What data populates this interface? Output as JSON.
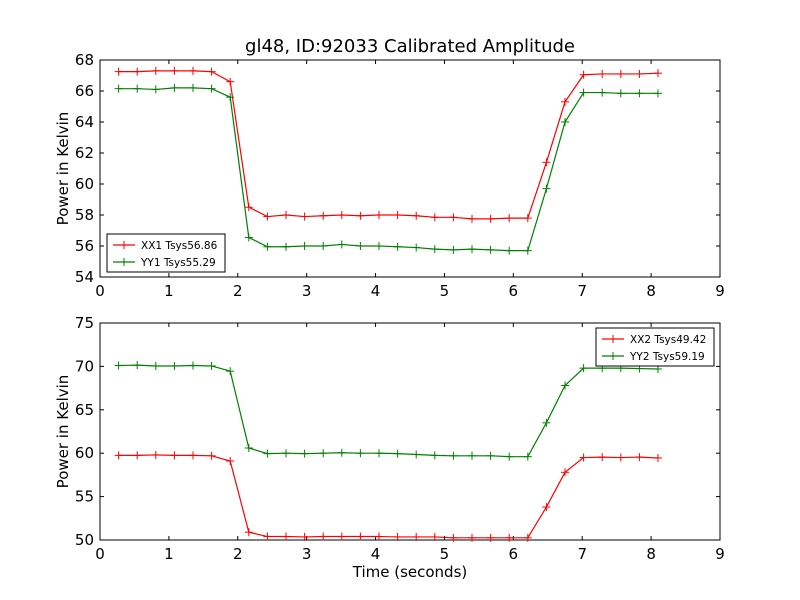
{
  "title": "gl48, ID:92033 Calibrated Amplitude",
  "chart_data": [
    {
      "type": "line",
      "xlabel": "",
      "ylabel": "Power in Kelvin",
      "xlim": [
        0,
        9
      ],
      "ylim": [
        54,
        68
      ],
      "xticks": [
        0,
        1,
        2,
        3,
        4,
        5,
        6,
        7,
        8,
        9
      ],
      "yticks": [
        54,
        56,
        58,
        60,
        62,
        64,
        66,
        68
      ],
      "grid": false,
      "legend_position": "lower-left",
      "x": [
        0.27,
        0.54,
        0.81,
        1.08,
        1.35,
        1.62,
        1.89,
        2.16,
        2.43,
        2.7,
        2.97,
        3.24,
        3.51,
        3.78,
        4.05,
        4.32,
        4.59,
        4.86,
        5.13,
        5.4,
        5.67,
        5.94,
        6.21,
        6.48,
        6.75,
        7.02,
        7.29,
        7.56,
        7.83,
        8.1
      ],
      "series": [
        {
          "name": "XX1 Tsys56.86",
          "color": "#ff0000",
          "values": [
            67.25,
            67.25,
            67.3,
            67.3,
            67.3,
            67.25,
            66.6,
            58.5,
            57.9,
            58.0,
            57.9,
            57.95,
            58.0,
            57.95,
            58.0,
            58.0,
            57.95,
            57.85,
            57.85,
            57.75,
            57.75,
            57.8,
            57.8,
            61.4,
            65.3,
            67.05,
            67.1,
            67.1,
            67.1,
            67.15
          ]
        },
        {
          "name": "YY1 Tsys55.29",
          "color": "#008000",
          "values": [
            66.15,
            66.15,
            66.1,
            66.2,
            66.2,
            66.15,
            65.6,
            56.55,
            55.95,
            55.95,
            56.0,
            56.0,
            56.1,
            56.0,
            56.0,
            55.95,
            55.9,
            55.8,
            55.75,
            55.8,
            55.75,
            55.7,
            55.7,
            59.7,
            64.0,
            65.9,
            65.9,
            65.85,
            65.85,
            65.85
          ]
        }
      ]
    },
    {
      "type": "line",
      "xlabel": "Time (seconds)",
      "ylabel": "Power in Kelvin",
      "xlim": [
        0,
        9
      ],
      "ylim": [
        50,
        75
      ],
      "xticks": [
        0,
        1,
        2,
        3,
        4,
        5,
        6,
        7,
        8,
        9
      ],
      "yticks": [
        50,
        55,
        60,
        65,
        70,
        75
      ],
      "grid": false,
      "legend_position": "upper-right",
      "x": [
        0.27,
        0.54,
        0.81,
        1.08,
        1.35,
        1.62,
        1.89,
        2.16,
        2.43,
        2.7,
        2.97,
        3.24,
        3.51,
        3.78,
        4.05,
        4.32,
        4.59,
        4.86,
        5.13,
        5.4,
        5.67,
        5.94,
        6.21,
        6.48,
        6.75,
        7.02,
        7.29,
        7.56,
        7.83,
        8.1
      ],
      "series": [
        {
          "name": "XX2 Tsys49.42",
          "color": "#ff0000",
          "values": [
            59.75,
            59.75,
            59.8,
            59.75,
            59.75,
            59.7,
            59.1,
            50.9,
            50.4,
            50.4,
            50.35,
            50.4,
            50.4,
            50.4,
            50.4,
            50.35,
            50.35,
            50.35,
            50.25,
            50.25,
            50.25,
            50.25,
            50.25,
            53.8,
            57.8,
            59.5,
            59.55,
            59.5,
            59.55,
            59.45
          ]
        },
        {
          "name": "YY2 Tsys59.19",
          "color": "#008000",
          "values": [
            70.1,
            70.15,
            70.05,
            70.05,
            70.1,
            70.05,
            69.45,
            60.6,
            59.95,
            60.0,
            59.95,
            60.0,
            60.05,
            60.0,
            60.0,
            59.95,
            59.85,
            59.75,
            59.7,
            59.7,
            59.7,
            59.6,
            59.6,
            63.5,
            67.8,
            69.8,
            69.8,
            69.8,
            69.75,
            69.7
          ]
        }
      ]
    }
  ]
}
